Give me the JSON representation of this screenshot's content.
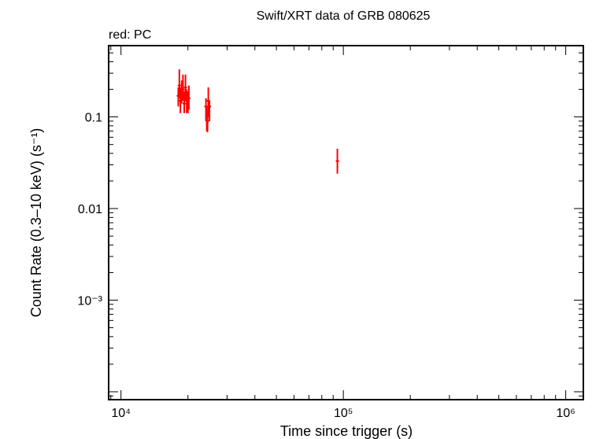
{
  "chart_data": {
    "type": "scatter",
    "title": "Swift/XRT data of GRB 080625",
    "subtitle": "red: PC",
    "xlabel": "Time since trigger (s)",
    "ylabel": "Count Rate (0.3–10 keV) (s⁻¹)",
    "xscale": "log",
    "yscale": "log",
    "xlim": [
      8800,
      1200000
    ],
    "ylim": [
      8.2e-05,
      0.6
    ],
    "x_ticks": [
      {
        "value": 10000,
        "label": "10⁴"
      },
      {
        "value": 100000,
        "label": "10⁵"
      },
      {
        "value": 1000000,
        "label": "10⁶"
      }
    ],
    "y_ticks": [
      {
        "value": 0.1,
        "label": "0.1"
      },
      {
        "value": 0.01,
        "label": "0.01"
      },
      {
        "value": 0.001,
        "label": "10⁻³"
      }
    ],
    "grid": false,
    "series": [
      {
        "name": "PC",
        "color": "#ff0000",
        "points": [
          {
            "x": 18100,
            "y": 0.17,
            "ylo": 0.13,
            "yhi": 0.21
          },
          {
            "x": 18300,
            "y": 0.22,
            "ylo": 0.16,
            "yhi": 0.33
          },
          {
            "x": 18500,
            "y": 0.15,
            "ylo": 0.11,
            "yhi": 0.21
          },
          {
            "x": 18750,
            "y": 0.19,
            "ylo": 0.14,
            "yhi": 0.25
          },
          {
            "x": 19000,
            "y": 0.2,
            "ylo": 0.15,
            "yhi": 0.29
          },
          {
            "x": 19250,
            "y": 0.14,
            "ylo": 0.11,
            "yhi": 0.19
          },
          {
            "x": 19500,
            "y": 0.21,
            "ylo": 0.15,
            "yhi": 0.29
          },
          {
            "x": 19750,
            "y": 0.15,
            "ylo": 0.11,
            "yhi": 0.2
          },
          {
            "x": 20000,
            "y": 0.14,
            "ylo": 0.11,
            "yhi": 0.19
          },
          {
            "x": 20200,
            "y": 0.16,
            "ylo": 0.12,
            "yhi": 0.22
          },
          {
            "x": 24100,
            "y": 0.13,
            "ylo": 0.09,
            "yhi": 0.16
          },
          {
            "x": 24300,
            "y": 0.1,
            "ylo": 0.07,
            "yhi": 0.13
          },
          {
            "x": 24500,
            "y": 0.09,
            "ylo": 0.068,
            "yhi": 0.12
          },
          {
            "x": 24700,
            "y": 0.15,
            "ylo": 0.1,
            "yhi": 0.21
          },
          {
            "x": 25000,
            "y": 0.13,
            "ylo": 0.09,
            "yhi": 0.15
          },
          {
            "x": 94000,
            "y": 0.033,
            "ylo": 0.024,
            "yhi": 0.045
          }
        ]
      }
    ]
  }
}
